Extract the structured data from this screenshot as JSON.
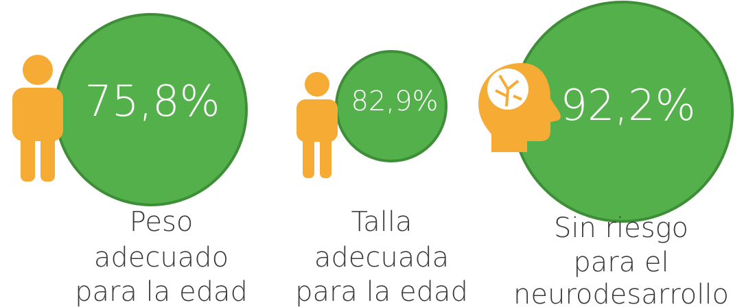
{
  "items": [
    {
      "value": "75,8%",
      "label": [
        "Peso",
        "adecuado",
        "para la edad"
      ]
    },
    {
      "value": "82,9%",
      "label": [
        "Talla",
        "adecuada",
        "para la edad"
      ]
    },
    {
      "value": "92,2%",
      "label": [
        "Sin riesgo",
        "para el",
        "neurodesarrollo"
      ]
    }
  ]
}
